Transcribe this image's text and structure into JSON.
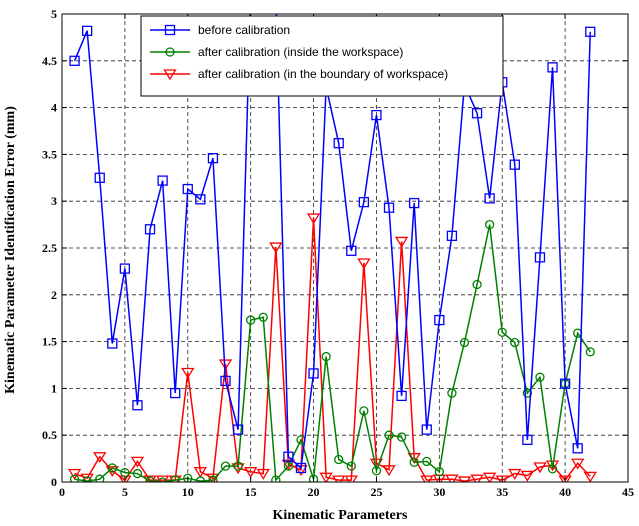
{
  "chart_data": {
    "type": "line",
    "title": "",
    "xlabel": "Kinematic Parameters",
    "ylabel": "Kinematic Parameter Identification Error (mm)",
    "xlim": [
      0,
      45
    ],
    "ylim": [
      0,
      5
    ],
    "xticks": [
      0,
      5,
      10,
      15,
      20,
      25,
      30,
      35,
      40,
      45
    ],
    "yticks": [
      0,
      0.5,
      1,
      1.5,
      2,
      2.5,
      3,
      3.5,
      4,
      4.5,
      5
    ],
    "xtick_labels": [
      "0",
      "5",
      "10",
      "15",
      "20",
      "25",
      "30",
      "35",
      "40",
      "45"
    ],
    "ytick_labels": [
      "0",
      "0.5",
      "1",
      "1.5",
      "2",
      "2.5",
      "3",
      "3.5",
      "4",
      "4.5",
      "5"
    ],
    "grid": true,
    "legend_position": "top-center",
    "x": [
      1,
      2,
      3,
      4,
      5,
      6,
      7,
      8,
      9,
      10,
      11,
      12,
      13,
      14,
      15,
      16,
      17,
      18,
      19,
      20,
      21,
      22,
      23,
      24,
      25,
      26,
      27,
      28,
      29,
      30,
      31,
      32,
      33,
      34,
      35,
      36,
      37,
      38,
      39,
      40,
      41,
      42
    ],
    "series": [
      {
        "name": "before calibration",
        "color": "#0000ff",
        "marker": "square",
        "values": [
          4.5,
          4.82,
          3.25,
          1.48,
          2.28,
          0.82,
          2.7,
          3.22,
          0.95,
          3.13,
          3.02,
          3.46,
          1.08,
          0.56,
          5.2,
          5.2,
          5.2,
          0.27,
          0.15,
          1.16,
          4.22,
          3.62,
          2.47,
          2.99,
          3.92,
          2.93,
          0.92,
          2.98,
          0.56,
          1.73,
          2.63,
          4.25,
          3.94,
          3.03,
          4.27,
          3.39,
          0.45,
          2.4,
          4.43,
          1.05,
          0.36,
          4.81
        ]
      },
      {
        "name": "after calibration (inside the workspace)",
        "color": "#008000",
        "marker": "circle",
        "values": [
          0.03,
          0.01,
          0.03,
          0.15,
          0.1,
          0.09,
          0.01,
          0.0,
          0.02,
          0.04,
          0.01,
          0.02,
          0.17,
          0.17,
          1.73,
          1.76,
          0.02,
          0.17,
          0.45,
          0.03,
          1.34,
          0.24,
          0.17,
          0.76,
          0.12,
          0.5,
          0.48,
          0.21,
          0.22,
          0.11,
          0.95,
          1.49,
          2.11,
          2.75,
          1.6,
          1.49,
          0.95,
          1.12,
          0.14,
          1.05,
          1.59,
          1.39
        ]
      },
      {
        "name": "after calibration (in the boundary of workspace)",
        "color": "#ff0000",
        "marker": "triangle-down",
        "values": [
          0.09,
          0.04,
          0.27,
          0.12,
          0.02,
          0.22,
          0.02,
          0.02,
          0.02,
          1.17,
          0.11,
          0.04,
          1.26,
          0.15,
          0.11,
          0.09,
          2.51,
          0.19,
          0.13,
          2.82,
          0.05,
          0.02,
          0.02,
          2.34,
          0.2,
          0.13,
          2.57,
          0.26,
          0.02,
          0.03,
          0.03,
          0.01,
          0.03,
          0.05,
          0.02,
          0.09,
          0.07,
          0.16,
          0.18,
          0.02,
          0.2,
          0.06
        ]
      }
    ]
  }
}
